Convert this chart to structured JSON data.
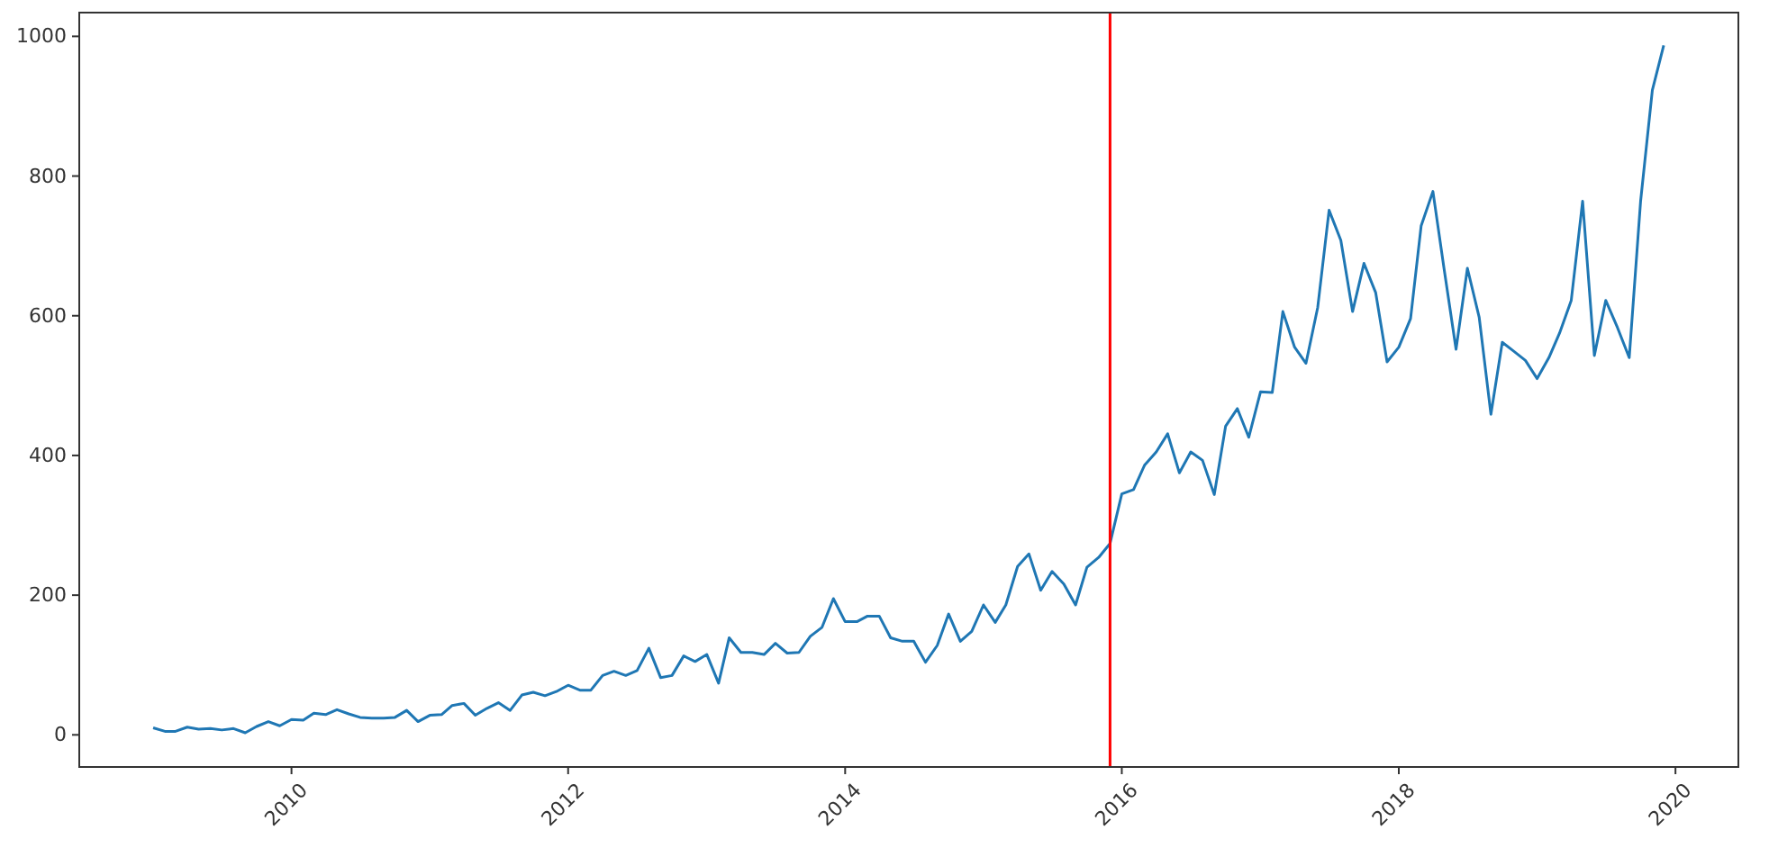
{
  "chart_data": {
    "type": "line",
    "x": [
      "2009-01",
      "2009-02",
      "2009-03",
      "2009-04",
      "2009-05",
      "2009-06",
      "2009-07",
      "2009-08",
      "2009-09",
      "2009-10",
      "2009-11",
      "2009-12",
      "2010-01",
      "2010-02",
      "2010-03",
      "2010-04",
      "2010-05",
      "2010-06",
      "2010-07",
      "2010-08",
      "2010-09",
      "2010-10",
      "2010-11",
      "2010-12",
      "2011-01",
      "2011-02",
      "2011-03",
      "2011-04",
      "2011-05",
      "2011-06",
      "2011-07",
      "2011-08",
      "2011-09",
      "2011-10",
      "2011-11",
      "2011-12",
      "2012-01",
      "2012-02",
      "2012-03",
      "2012-04",
      "2012-05",
      "2012-06",
      "2012-07",
      "2012-08",
      "2012-09",
      "2012-10",
      "2012-11",
      "2012-12",
      "2013-01",
      "2013-02",
      "2013-03",
      "2013-04",
      "2013-05",
      "2013-06",
      "2013-07",
      "2013-08",
      "2013-09",
      "2013-10",
      "2013-11",
      "2013-12",
      "2014-01",
      "2014-02",
      "2014-03",
      "2014-04",
      "2014-05",
      "2014-06",
      "2014-07",
      "2014-08",
      "2014-09",
      "2014-10",
      "2014-11",
      "2014-12",
      "2015-01",
      "2015-02",
      "2015-03",
      "2015-04",
      "2015-05",
      "2015-06",
      "2015-07",
      "2015-08",
      "2015-09",
      "2015-10",
      "2015-11",
      "2015-12",
      "2016-01",
      "2016-02",
      "2016-03",
      "2016-04",
      "2016-05",
      "2016-06",
      "2016-07",
      "2016-08",
      "2016-09",
      "2016-10",
      "2016-11",
      "2016-12",
      "2017-01",
      "2017-02",
      "2017-03",
      "2017-04",
      "2017-05",
      "2017-06",
      "2017-07",
      "2017-08",
      "2017-09",
      "2017-10",
      "2017-11",
      "2017-12",
      "2018-01",
      "2018-02",
      "2018-03",
      "2018-04",
      "2018-05",
      "2018-06",
      "2018-07",
      "2018-08",
      "2018-09",
      "2018-10",
      "2018-11",
      "2018-12",
      "2019-01",
      "2019-02",
      "2019-03",
      "2019-04",
      "2019-05",
      "2019-06",
      "2019-07",
      "2019-08",
      "2019-09",
      "2019-10",
      "2019-11",
      "2019-12"
    ],
    "series": [
      {
        "color": "#1f77b4",
        "values": [
          10,
          5,
          5,
          11,
          8,
          9,
          7,
          9,
          3,
          12,
          19,
          13,
          22,
          21,
          31,
          29,
          36,
          30,
          25,
          24,
          24,
          25,
          35,
          19,
          28,
          29,
          42,
          45,
          28,
          38,
          46,
          35,
          57,
          61,
          56,
          62,
          71,
          64,
          64,
          85,
          91,
          85,
          92,
          124,
          82,
          85,
          113,
          105,
          115,
          74,
          139,
          118,
          118,
          115,
          131,
          117,
          118,
          141,
          154,
          195,
          162,
          162,
          170,
          170,
          139,
          134,
          134,
          104,
          128,
          173,
          134,
          148,
          186,
          161,
          186,
          241,
          259,
          207,
          234,
          216,
          186,
          240,
          254,
          274,
          345,
          351,
          386,
          405,
          431,
          375,
          405,
          393,
          344,
          442,
          467,
          426,
          491,
          490,
          606,
          555,
          532,
          612,
          751,
          708,
          606,
          675,
          633,
          534,
          555,
          596,
          729,
          778,
          665,
          552,
          668,
          598,
          459,
          562,
          549,
          536,
          510,
          540,
          575,
          622,
          764,
          543,
          622,
          583,
          540,
          764,
          923,
          987
        ]
      }
    ],
    "xlim": [
      "2008-06-20",
      "2020-06-15"
    ],
    "xticks": [
      "2010",
      "2012",
      "2014",
      "2016",
      "2018",
      "2020"
    ],
    "ylim": [
      -46,
      1034
    ],
    "yticks": [
      0,
      200,
      400,
      600,
      800,
      1000
    ],
    "ref_lines": [
      {
        "axis": "x",
        "value": "2015-12",
        "color": "#ff0000"
      }
    ],
    "grid": false,
    "line_style": "solid",
    "marker": "none"
  }
}
